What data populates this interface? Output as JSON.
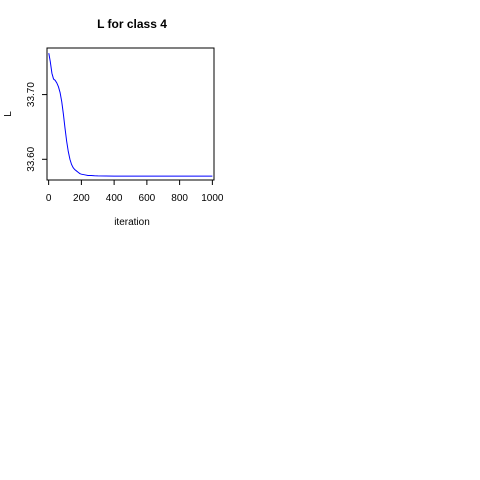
{
  "chart_data": {
    "type": "line",
    "title": "L for class 4",
    "xlabel": "iteration",
    "ylabel": "L",
    "xlim": [
      -10,
      1010
    ],
    "ylim": [
      33.568,
      33.772
    ],
    "xticks": [
      0,
      200,
      400,
      600,
      800,
      1000
    ],
    "yticks": [
      33.6,
      33.7
    ],
    "xtick_labels": [
      "0",
      "200",
      "400",
      "600",
      "800",
      "1000"
    ],
    "ytick_labels": [
      "33.60",
      "33.70"
    ],
    "grid": false,
    "legend": "none",
    "series": [
      {
        "color": "#0000ff",
        "x": [
          1,
          10,
          20,
          30,
          40,
          50,
          60,
          70,
          80,
          90,
          100,
          110,
          120,
          130,
          140,
          150,
          160,
          170,
          180,
          190,
          200,
          220,
          240,
          260,
          280,
          300,
          350,
          400,
          500,
          600,
          700,
          800,
          900,
          1000
        ],
        "y": [
          33.764,
          33.751,
          33.733,
          33.724,
          33.722,
          33.718,
          33.712,
          33.703,
          33.689,
          33.67,
          33.648,
          33.628,
          33.612,
          33.6,
          33.592,
          33.587,
          33.584,
          33.582,
          33.58,
          33.578,
          33.577,
          33.576,
          33.575,
          33.575,
          33.5745,
          33.5743,
          33.5741,
          33.574,
          33.574,
          33.574,
          33.574,
          33.574,
          33.574,
          33.574
        ]
      }
    ]
  }
}
